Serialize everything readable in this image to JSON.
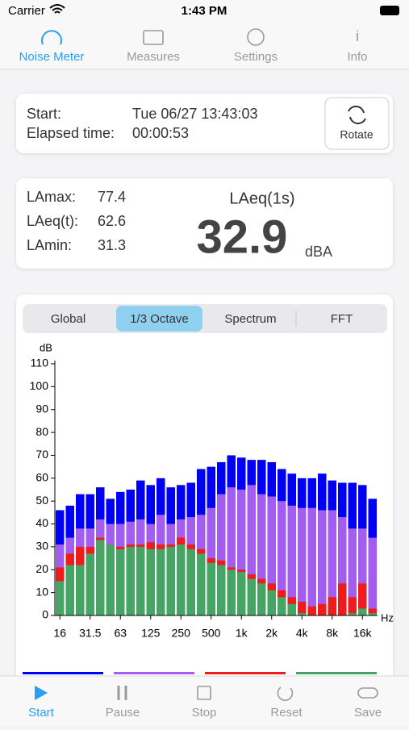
{
  "status": {
    "carrier": "Carrier",
    "time": "1:43 PM"
  },
  "top_tabs": {
    "items": [
      "Noise Meter",
      "Measures",
      "Settings",
      "Info"
    ],
    "selected": 0
  },
  "session": {
    "start_label": "Start:",
    "start_value": "Tue 06/27 13:43:03",
    "elapsed_label": "Elapsed time:",
    "elapsed_value": "00:00:53",
    "rotate": "Rotate"
  },
  "levels": {
    "lamax_label": "LAmax:",
    "lamax": 77.4,
    "laeqt_label": "LAeq(t):",
    "laeqt": 62.6,
    "lamin_label": "LAmin:",
    "lamin": 31.3,
    "main_label": "LAeq(1s)",
    "main_value": 32.9,
    "unit": "dBA"
  },
  "segments": {
    "items": [
      "Global",
      "1/3 Octave",
      "Spectrum",
      "FFT"
    ],
    "selected": 1
  },
  "chart_data": {
    "type": "bar",
    "y_label": "dB",
    "x_unit": "Hz",
    "categories": [
      "16",
      null,
      null,
      "31.5",
      null,
      null,
      "63",
      null,
      null,
      "125",
      null,
      null,
      "250",
      null,
      null,
      "500",
      null,
      null,
      "1k",
      null,
      null,
      "2k",
      null,
      null,
      "4k",
      null,
      null,
      "8k",
      null,
      null,
      "16k",
      null
    ],
    "ylim": [
      0,
      110
    ],
    "yticks": [
      0,
      10,
      20,
      30,
      40,
      50,
      60,
      70,
      80,
      90,
      100,
      110
    ],
    "grid": false,
    "series": [
      {
        "color": "#0000f5",
        "values": [
          46,
          48,
          53,
          53,
          56,
          51,
          54,
          55,
          59,
          57,
          60,
          56,
          57,
          58,
          64,
          65,
          67,
          70,
          69,
          68,
          68,
          67,
          64,
          62,
          60,
          60,
          62,
          59,
          58,
          58,
          57,
          51
        ]
      },
      {
        "color": "#a35df0",
        "values": [
          31,
          34,
          38,
          38,
          42,
          40,
          40,
          41,
          42,
          40,
          44,
          40,
          42,
          43,
          44,
          47,
          53,
          56,
          55,
          57,
          53,
          52,
          50,
          48,
          47,
          47,
          46,
          46,
          43,
          38,
          38,
          34
        ]
      },
      {
        "color": "#ee1c1c",
        "values": [
          21,
          27,
          30,
          30,
          34,
          30,
          30,
          31,
          31,
          32,
          31,
          31,
          34,
          31,
          29,
          25,
          24,
          21,
          20,
          18,
          16,
          14,
          11,
          8,
          6,
          4,
          5,
          8,
          14,
          8,
          14,
          3
        ]
      },
      {
        "color": "#46a464",
        "values": [
          15,
          22,
          22,
          27,
          33,
          31,
          29,
          30,
          30,
          29,
          29,
          30,
          31,
          29,
          27,
          23,
          22,
          20,
          19,
          16,
          14,
          11,
          8,
          5,
          1,
          0,
          0,
          0,
          0,
          1,
          3,
          1
        ]
      }
    ]
  },
  "bottom_tabs": {
    "items": [
      "Start",
      "Pause",
      "Stop",
      "Reset",
      "Save"
    ],
    "selected": 0
  }
}
